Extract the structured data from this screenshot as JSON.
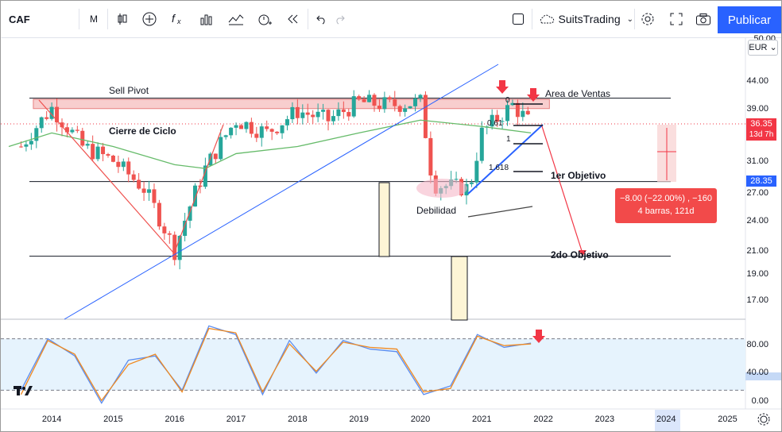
{
  "toolbar": {
    "symbol": "CAF",
    "interval": "M",
    "user": "SuitsTrading",
    "publish_label": "Publicar"
  },
  "price_axis": {
    "currency": "EUR",
    "labels": [
      "44.00",
      "39.00",
      "31.00",
      "27.00",
      "24.00",
      "21.00",
      "19.00",
      "17.00"
    ],
    "partial_top_label": "50.00",
    "current_price": "36.35",
    "countdown": "13d 7h",
    "target_price": "28.35",
    "colors": {
      "current": "#f23645",
      "target": "#2962ff"
    }
  },
  "oscillator_axis": {
    "labels": [
      "80.00",
      "40.00",
      "0.00"
    ]
  },
  "time_axis": {
    "labels": [
      "2014",
      "2015",
      "2016",
      "2017",
      "2018",
      "2019",
      "2020",
      "2021",
      "2022",
      "2023",
      "2024",
      "2025"
    ],
    "highlighted": "2024"
  },
  "annotations": {
    "sell_pivot": "Sell Pivot",
    "area_ventas": "Area de Ventas",
    "cierre_ciclo": "Cierre de Ciclo",
    "debilidad": "Debilidad",
    "objetivo1": "1er Objetivo",
    "objetivo2": "2do Objetivo",
    "fib0": "0",
    "fib061": "0.61",
    "fib1": "1",
    "fib1618": "1.618"
  },
  "measure": {
    "line1": "−8.00 (−22.00%) , −160",
    "line2": "4 barras, 121d"
  },
  "chart_data": {
    "type": "candlestick",
    "title": "CAF",
    "x_range": [
      2013.3,
      2025.2
    ],
    "y_scale": "log",
    "y_range": [
      15.0,
      50.0
    ],
    "annual_closes": [
      {
        "x": 2013.5,
        "close": 33.0
      },
      {
        "x": 2014.0,
        "close": 39.0
      },
      {
        "x": 2014.5,
        "close": 33.0
      },
      {
        "x": 2015.0,
        "close": 31.0
      },
      {
        "x": 2015.5,
        "close": 27.5
      },
      {
        "x": 2016.0,
        "close": 21.0
      },
      {
        "x": 2016.5,
        "close": 30.0
      },
      {
        "x": 2017.0,
        "close": 37.0
      },
      {
        "x": 2017.5,
        "close": 35.0
      },
      {
        "x": 2018.0,
        "close": 38.5
      },
      {
        "x": 2018.5,
        "close": 37.0
      },
      {
        "x": 2019.0,
        "close": 40.0
      },
      {
        "x": 2019.5,
        "close": 39.5
      },
      {
        "x": 2020.0,
        "close": 40.0
      },
      {
        "x": 2020.2,
        "close": 28.0
      },
      {
        "x": 2020.8,
        "close": 27.5
      },
      {
        "x": 2021.0,
        "close": 35.0
      },
      {
        "x": 2021.5,
        "close": 39.5
      },
      {
        "x": 2021.8,
        "close": 36.35
      }
    ],
    "moving_average": [
      {
        "x": 2013.3,
        "y": 33.0
      },
      {
        "x": 2014.0,
        "y": 35.0
      },
      {
        "x": 2015.0,
        "y": 33.0
      },
      {
        "x": 2016.0,
        "y": 30.5
      },
      {
        "x": 2016.5,
        "y": 30.0
      },
      {
        "x": 2017.0,
        "y": 32.0
      },
      {
        "x": 2018.0,
        "y": 33.0
      },
      {
        "x": 2019.0,
        "y": 35.0
      },
      {
        "x": 2020.0,
        "y": 37.0
      },
      {
        "x": 2021.0,
        "y": 36.0
      },
      {
        "x": 2021.8,
        "y": 35.0
      }
    ],
    "horizontal_levels": [
      {
        "name": "sell-pivot",
        "y": 40.7
      },
      {
        "name": "objetivo-1",
        "y": 28.35
      },
      {
        "name": "objetivo-2",
        "y": 20.5
      }
    ],
    "sell_zone": [
      38.9,
      40.5
    ],
    "oscillator": {
      "range": [
        0,
        100
      ],
      "band": [
        20,
        80
      ],
      "k": [
        20,
        80,
        60,
        5,
        55,
        60,
        20,
        95,
        85,
        15,
        78,
        40,
        78,
        68,
        65,
        15,
        25,
        85,
        70,
        75
      ],
      "d": [
        15,
        78,
        62,
        8,
        50,
        62,
        18,
        92,
        87,
        18,
        74,
        42,
        76,
        70,
        68,
        18,
        22,
        83,
        72,
        74
      ],
      "colors": {
        "k": "#5b8def",
        "d": "#f0891f"
      }
    },
    "colors": {
      "up": "#26a69a",
      "down": "#ef5350",
      "ma": "#66bb6a",
      "trend": "#2962ff",
      "projection": "#f23645"
    }
  }
}
